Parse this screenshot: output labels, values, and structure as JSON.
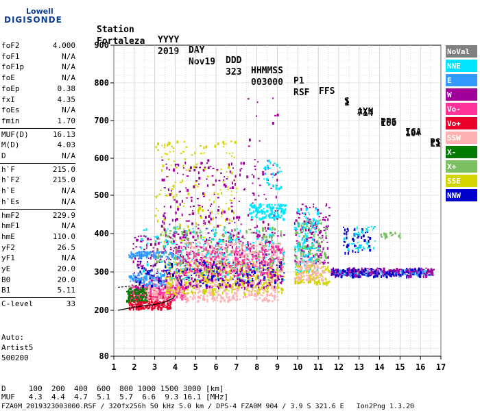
{
  "logo": {
    "top": "Lowell",
    "main": "DIGISONDE"
  },
  "header": {
    "row1": [
      "Station",
      "YYYY",
      "DAY",
      "DDD",
      "HHMMSS",
      "P1",
      "FFS",
      "S",
      "AXN",
      "PPS",
      "IGA",
      "PS"
    ],
    "row2": [
      "Fortaleza",
      "2019",
      "Nov19",
      "323",
      "003000",
      "RSF",
      "1",
      "714",
      "100",
      "10+",
      "11"
    ]
  },
  "params": [
    {
      "label": "foF2",
      "value": "4.000"
    },
    {
      "label": "foF1",
      "value": "N/A"
    },
    {
      "label": "foF1p",
      "value": "N/A"
    },
    {
      "label": "foE",
      "value": "N/A"
    },
    {
      "label": "foEp",
      "value": "0.38"
    },
    {
      "label": "fxI",
      "value": "4.35"
    },
    {
      "label": "foEs",
      "value": "N/A"
    },
    {
      "label": "fmin",
      "value": "1.70"
    },
    {
      "label": "MUF(D)",
      "value": "16.13"
    },
    {
      "label": "M(D)",
      "value": "4.03"
    },
    {
      "label": "D",
      "value": "N/A"
    },
    {
      "label": "h`F",
      "value": "215.0"
    },
    {
      "label": "h`F2",
      "value": "215.0"
    },
    {
      "label": "h`E",
      "value": "N/A"
    },
    {
      "label": "h`Es",
      "value": "N/A"
    },
    {
      "label": "hmF2",
      "value": "229.9"
    },
    {
      "label": "hmF1",
      "value": "N/A"
    },
    {
      "label": "hmE",
      "value": "110.0"
    },
    {
      "label": "yF2",
      "value": "26.5"
    },
    {
      "label": "yF1",
      "value": "N/A"
    },
    {
      "label": "yE",
      "value": "20.0"
    },
    {
      "label": "B0",
      "value": "20.0"
    },
    {
      "label": "B1",
      "value": "5.11"
    },
    {
      "label": "C-level",
      "value": "33"
    }
  ],
  "auto": [
    "Auto:",
    "Artist5",
    "500200"
  ],
  "legend": [
    {
      "label": "NoVal",
      "color": "#808080"
    },
    {
      "label": "NNE",
      "color": "#00e5ff"
    },
    {
      "label": "E",
      "color": "#3399ff"
    },
    {
      "label": "W",
      "color": "#a0009a"
    },
    {
      "label": "Vo-",
      "color": "#ff3399"
    },
    {
      "label": "Vo+",
      "color": "#e8002a"
    },
    {
      "label": "SSW",
      "color": "#ffb0b0"
    },
    {
      "label": "X-",
      "color": "#007a00"
    },
    {
      "label": "X+",
      "color": "#7ac060"
    },
    {
      "label": "SSE",
      "color": "#d4d400"
    },
    {
      "label": "NNW",
      "color": "#0000cc"
    }
  ],
  "footer": {
    "d_row": "D     100  200  400  600  800 1000 1500 3000 [km]",
    "muf_row": "MUF   4.3  4.4  4.7  5.1  5.7  6.6  9.3 16.1 [MHz]",
    "file_row": "FZA0M_2019323003000.RSF / 320fx256h 50 kHz 5.0 km / DPS-4 FZA0M 904 / 3.9 S 321.6 E   Ion2Png 1.3.20"
  },
  "chart_data": {
    "type": "scatter",
    "xlim": [
      1,
      17
    ],
    "ylim": [
      80,
      900
    ],
    "x_ticks": [
      "1",
      "2",
      "3",
      "4",
      "5",
      "6",
      "7",
      "8",
      "9",
      "10",
      "11",
      "12",
      "13",
      "14",
      "15",
      "16",
      "17"
    ],
    "y_ticks": [
      "80",
      "200",
      "300",
      "400",
      "500",
      "600",
      "700",
      "800",
      "900"
    ],
    "y_tick_values": [
      80,
      200,
      300,
      400,
      500,
      600,
      700,
      800,
      900
    ],
    "clusters": [
      {
        "series": "Vo+",
        "color": "#e8002a",
        "x": [
          1.7,
          3.8
        ],
        "y": [
          205,
          245
        ],
        "n": 260
      },
      {
        "series": "Vo-",
        "color": "#ff3399",
        "x": [
          1.7,
          4.5
        ],
        "y": [
          230,
          270
        ],
        "n": 260
      },
      {
        "series": "X-",
        "color": "#007a00",
        "x": [
          1.6,
          2.6
        ],
        "y": [
          225,
          260
        ],
        "n": 80
      },
      {
        "series": "SSW",
        "color": "#ffb0b0",
        "x": [
          2.5,
          9.0
        ],
        "y": [
          225,
          285
        ],
        "n": 420
      },
      {
        "series": "SSE",
        "color": "#d4d400",
        "x": [
          3.5,
          9.3
        ],
        "y": [
          245,
          330
        ],
        "n": 380
      },
      {
        "series": "SSE",
        "color": "#d4d400",
        "x": [
          3.0,
          7.0
        ],
        "y": [
          380,
          650
        ],
        "n": 160
      },
      {
        "series": "W",
        "color": "#a0009a",
        "x": [
          1.9,
          9.3
        ],
        "y": [
          260,
          400
        ],
        "n": 520
      },
      {
        "series": "W",
        "color": "#a0009a",
        "x": [
          3.3,
          9.0
        ],
        "y": [
          400,
          600
        ],
        "n": 220
      },
      {
        "series": "NNE",
        "color": "#00e5ff",
        "x": [
          7.6,
          9.4
        ],
        "y": [
          440,
          480
        ],
        "n": 140
      },
      {
        "series": "NNE",
        "color": "#00e5ff",
        "x": [
          2.3,
          9.3
        ],
        "y": [
          280,
          420
        ],
        "n": 220
      },
      {
        "series": "E",
        "color": "#3399ff",
        "x": [
          1.7,
          4.2
        ],
        "y": [
          340,
          355
        ],
        "n": 90
      },
      {
        "series": "E",
        "color": "#3399ff",
        "x": [
          1.7,
          3.5
        ],
        "y": [
          265,
          300
        ],
        "n": 90
      },
      {
        "series": "SSW",
        "color": "#ffb0b0",
        "x": [
          4.5,
          9.3
        ],
        "y": [
          300,
          380
        ],
        "n": 260
      },
      {
        "series": "Vo-",
        "color": "#ff3399",
        "x": [
          4.0,
          9.2
        ],
        "y": [
          290,
          370
        ],
        "n": 240
      },
      {
        "series": "X+",
        "color": "#7ac060",
        "x": [
          3.0,
          9.3
        ],
        "y": [
          300,
          420
        ],
        "n": 160
      },
      {
        "series": "NNW",
        "color": "#0000cc",
        "x": [
          2.0,
          9.3
        ],
        "y": [
          265,
          330
        ],
        "n": 120
      },
      {
        "series": "W",
        "color": "#a0009a",
        "x": [
          9.8,
          11.5
        ],
        "y": [
          320,
          480
        ],
        "n": 160
      },
      {
        "series": "NNE",
        "color": "#00e5ff",
        "x": [
          9.8,
          11.0
        ],
        "y": [
          300,
          470
        ],
        "n": 140
      },
      {
        "series": "SSE",
        "color": "#d4d400",
        "x": [
          9.8,
          11.5
        ],
        "y": [
          270,
          320
        ],
        "n": 120
      },
      {
        "series": "X+",
        "color": "#7ac060",
        "x": [
          9.8,
          11.4
        ],
        "y": [
          320,
          440
        ],
        "n": 90
      },
      {
        "series": "SSW",
        "color": "#ffb0b0",
        "x": [
          9.8,
          11.3
        ],
        "y": [
          280,
          330
        ],
        "n": 80
      },
      {
        "series": "E",
        "color": "#3399ff",
        "x": [
          11.6,
          16.6
        ],
        "y": [
          292,
          308
        ],
        "n": 240
      },
      {
        "series": "W",
        "color": "#a0009a",
        "x": [
          11.6,
          16.6
        ],
        "y": [
          290,
          312
        ],
        "n": 180
      },
      {
        "series": "NNW",
        "color": "#0000cc",
        "x": [
          11.6,
          16.0
        ],
        "y": [
          290,
          312
        ],
        "n": 90
      },
      {
        "series": "NNW",
        "color": "#0000cc",
        "x": [
          12.2,
          13.5
        ],
        "y": [
          350,
          420
        ],
        "n": 50
      },
      {
        "series": "NNE",
        "color": "#00e5ff",
        "x": [
          12.2,
          13.8
        ],
        "y": [
          350,
          420
        ],
        "n": 40
      },
      {
        "series": "X+",
        "color": "#7ac060",
        "x": [
          14.0,
          15.0
        ],
        "y": [
          390,
          405
        ],
        "n": 20
      },
      {
        "series": "NNE",
        "color": "#00e5ff",
        "x": [
          8.3,
          9.2
        ],
        "y": [
          520,
          600
        ],
        "n": 30
      },
      {
        "series": "W",
        "color": "#a0009a",
        "x": [
          7.5,
          9.0
        ],
        "y": [
          600,
          780
        ],
        "n": 10
      }
    ],
    "profile_curve": {
      "x": [
        1.2,
        2.0,
        2.5,
        3.0,
        3.4,
        3.7,
        3.9,
        4.0
      ],
      "y": [
        200,
        208,
        212,
        215,
        220,
        226,
        232,
        240
      ]
    },
    "profile_upper": {
      "x": [
        1.2,
        1.6,
        2.0,
        2.3
      ],
      "y": [
        260,
        262,
        264,
        266
      ]
    }
  }
}
